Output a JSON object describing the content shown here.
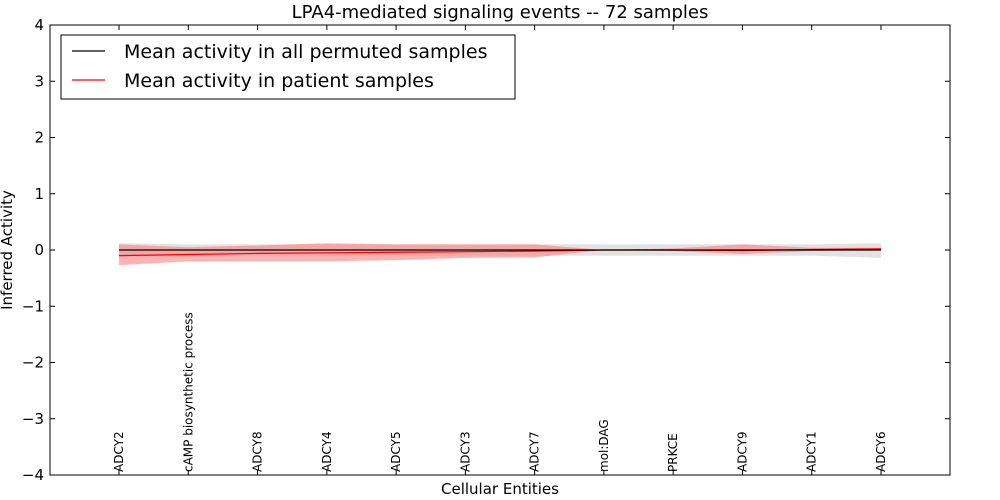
{
  "chart_data": {
    "type": "line",
    "title": "LPA4-mediated signaling events -- 72 samples",
    "xlabel": "Cellular Entities",
    "ylabel": "Inferred Activity",
    "ylim": [
      -4,
      4
    ],
    "yticks": [
      4,
      3,
      2,
      1,
      0,
      -1,
      -2,
      -3,
      -4
    ],
    "ytick_labels": [
      "4",
      "3",
      "2",
      "1",
      "0",
      "−1",
      "−2",
      "−3",
      "−4"
    ],
    "categories": [
      "ADCY2",
      "cAMP biosynthetic process",
      "ADCY8",
      "ADCY4",
      "ADCY5",
      "ADCY3",
      "ADCY7",
      "mol:DAG",
      "PRKCE",
      "ADCY9",
      "ADCY1",
      "ADCY6"
    ],
    "legend_position": "top-left",
    "colors": {
      "permuted": "#000000",
      "patient": "#ff0000",
      "permuted_band": "#bfbfbf",
      "patient_band": "#ff7f7f"
    },
    "series": [
      {
        "name": "Mean activity in all permuted samples",
        "values": [
          0.0,
          0.0,
          0.0,
          0.0,
          0.0,
          0.0,
          0.0,
          0.0,
          0.0,
          0.0,
          0.0,
          0.0
        ],
        "band_upper": [
          0.12,
          0.1,
          0.1,
          0.1,
          0.1,
          0.1,
          0.1,
          0.1,
          0.1,
          0.1,
          0.1,
          0.12
        ],
        "band_lower": [
          -0.12,
          -0.1,
          -0.1,
          -0.1,
          -0.1,
          -0.1,
          -0.1,
          -0.1,
          -0.1,
          -0.1,
          -0.1,
          -0.14
        ]
      },
      {
        "name": "Mean activity in patient samples",
        "values": [
          -0.1,
          -0.08,
          -0.06,
          -0.05,
          -0.04,
          -0.03,
          -0.02,
          0.0,
          0.0,
          -0.01,
          0.01,
          0.02
        ],
        "band_upper": [
          0.1,
          0.05,
          0.08,
          0.12,
          0.1,
          0.1,
          0.1,
          0.0,
          0.03,
          0.1,
          0.04,
          0.04
        ],
        "band_lower": [
          -0.27,
          -0.2,
          -0.2,
          -0.2,
          -0.18,
          -0.14,
          -0.13,
          0.0,
          -0.02,
          -0.07,
          -0.02,
          0.0
        ]
      }
    ]
  }
}
